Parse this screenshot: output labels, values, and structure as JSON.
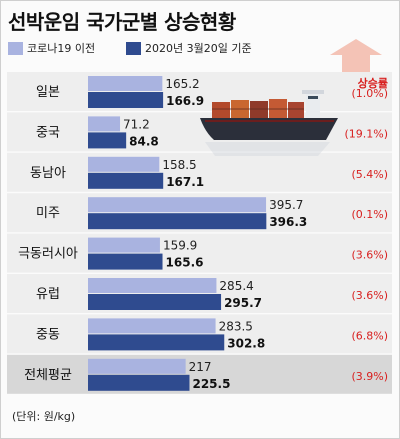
{
  "title": "선박운임 국가군별 상승현황",
  "unit_note": "(단위: 원/kg)",
  "rate_header": "상승률",
  "colors": {
    "before": "#a9b3e0",
    "after": "#2f4b8f",
    "rate": "#d8201f",
    "arrow": "#f2b8a9",
    "highlight_row": "#d7d7d7",
    "row_bg": "#eeeeee"
  },
  "ship_image": "container-ship-icon",
  "chart_data": {
    "type": "bar",
    "orientation": "horizontal",
    "title": "선박운임 국가군별 상승현황",
    "categories": [
      "일본",
      "중국",
      "동남아",
      "미주",
      "극동러시아",
      "유럽",
      "중동",
      "전체평균"
    ],
    "series": [
      {
        "name": "코로나19 이전",
        "values": [
          165.2,
          71.2,
          158.5,
          395.7,
          159.9,
          285.4,
          283.5,
          217
        ],
        "labels": [
          "165.2",
          "71.2",
          "158.5",
          "395.7",
          "159.9",
          "285.4",
          "283.5",
          "217"
        ]
      },
      {
        "name": "2020년 3월20일 기준",
        "values": [
          166.9,
          84.8,
          167.1,
          396.3,
          165.6,
          295.7,
          302.8,
          225.5
        ],
        "labels": [
          "166.9",
          "84.8",
          "167.1",
          "396.3",
          "165.6",
          "295.7",
          "302.8",
          "225.5"
        ]
      }
    ],
    "increase_rates": [
      "(1.0%)",
      "(19.1%)",
      "(5.4%)",
      "(0.1%)",
      "(3.6%)",
      "(3.6%)",
      "(6.8%)",
      "(3.9%)"
    ],
    "highlighted_category": "전체평균",
    "xlim": [
      0,
      400
    ]
  }
}
